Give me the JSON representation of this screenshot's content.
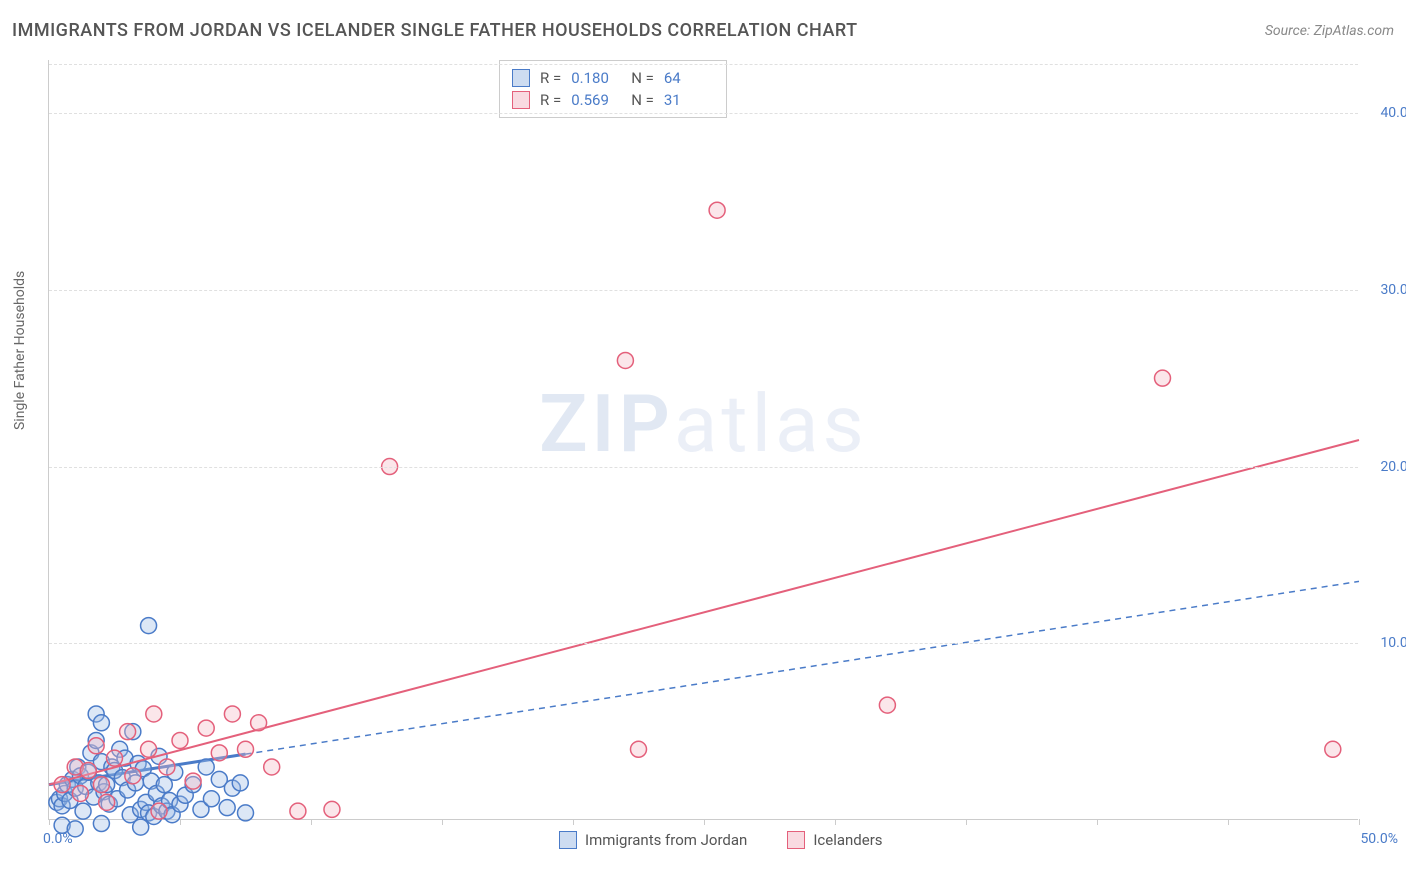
{
  "header": {
    "title": "IMMIGRANTS FROM JORDAN VS ICELANDER SINGLE FATHER HOUSEHOLDS CORRELATION CHART",
    "source": "Source: ZipAtlas.com"
  },
  "watermark": {
    "part1": "ZIP",
    "part2": "atlas"
  },
  "chart": {
    "type": "scatter",
    "ylabel": "Single Father Households",
    "background_color": "#ffffff",
    "grid_color": "#e0e0e0",
    "axis_color": "#cccccc",
    "label_color": "#666666",
    "tick_label_color": "#4a7bc8",
    "tick_fontsize": 14,
    "label_fontsize": 14,
    "xlim": [
      0,
      50
    ],
    "ylim": [
      0,
      43
    ],
    "xticks": [
      0,
      5,
      10,
      15,
      20,
      25,
      30,
      35,
      40,
      45,
      50
    ],
    "xtick_labels": {
      "first": "0.0%",
      "last": "50.0%"
    },
    "yticks": [
      10,
      20,
      30,
      40
    ],
    "ytick_labels": [
      "10.0%",
      "20.0%",
      "30.0%",
      "40.0%"
    ],
    "marker_radius": 8,
    "marker_stroke_width": 1.5,
    "marker_fill_opacity": 0.35,
    "series": [
      {
        "name": "Immigrants from Jordan",
        "color_stroke": "#4a7bc8",
        "color_fill": "#9bb9e4",
        "R": "0.180",
        "N": "64",
        "regression": {
          "x1": 0,
          "y1": 2.0,
          "x2": 50,
          "y2": 13.5,
          "dash": "6,5",
          "width": 1.5
        },
        "regression_solid_end": 7.5,
        "points": [
          [
            0.3,
            1.0
          ],
          [
            0.4,
            1.2
          ],
          [
            0.5,
            0.8
          ],
          [
            0.6,
            1.5
          ],
          [
            0.7,
            2.0
          ],
          [
            0.8,
            1.1
          ],
          [
            0.9,
            2.3
          ],
          [
            1.0,
            1.8
          ],
          [
            1.1,
            3.0
          ],
          [
            1.2,
            2.5
          ],
          [
            1.3,
            0.5
          ],
          [
            1.4,
            1.9
          ],
          [
            1.5,
            2.7
          ],
          [
            1.6,
            3.8
          ],
          [
            1.7,
            1.3
          ],
          [
            1.8,
            4.5
          ],
          [
            1.8,
            6.0
          ],
          [
            1.9,
            2.1
          ],
          [
            2.0,
            3.3
          ],
          [
            2.0,
            5.5
          ],
          [
            2.1,
            1.6
          ],
          [
            2.2,
            2.0
          ],
          [
            2.3,
            0.9
          ],
          [
            2.4,
            3.0
          ],
          [
            2.5,
            2.8
          ],
          [
            2.6,
            1.2
          ],
          [
            2.7,
            4.0
          ],
          [
            2.8,
            2.4
          ],
          [
            2.9,
            3.5
          ],
          [
            3.0,
            1.7
          ],
          [
            3.1,
            0.3
          ],
          [
            3.2,
            5.0
          ],
          [
            3.3,
            2.1
          ],
          [
            3.4,
            3.2
          ],
          [
            3.5,
            0.6
          ],
          [
            3.6,
            2.9
          ],
          [
            3.7,
            1.0
          ],
          [
            3.8,
            0.4
          ],
          [
            3.8,
            11.0
          ],
          [
            3.9,
            2.2
          ],
          [
            4.0,
            0.2
          ],
          [
            4.1,
            1.5
          ],
          [
            4.2,
            3.6
          ],
          [
            4.3,
            0.8
          ],
          [
            4.4,
            2.0
          ],
          [
            4.5,
            0.5
          ],
          [
            4.6,
            1.1
          ],
          [
            4.7,
            0.3
          ],
          [
            4.8,
            2.7
          ],
          [
            5.0,
            0.9
          ],
          [
            5.2,
            1.4
          ],
          [
            5.5,
            2.0
          ],
          [
            5.8,
            0.6
          ],
          [
            6.0,
            3.0
          ],
          [
            6.2,
            1.2
          ],
          [
            6.5,
            2.3
          ],
          [
            6.8,
            0.7
          ],
          [
            7.0,
            1.8
          ],
          [
            7.3,
            2.1
          ],
          [
            7.5,
            0.4
          ],
          [
            0.5,
            -0.3
          ],
          [
            1.0,
            -0.5
          ],
          [
            2.0,
            -0.2
          ],
          [
            3.5,
            -0.4
          ]
        ]
      },
      {
        "name": "Icelanders",
        "color_stroke": "#e4607b",
        "color_fill": "#f4b6c3",
        "R": "0.569",
        "N": "31",
        "regression": {
          "x1": 0,
          "y1": 2.0,
          "x2": 50,
          "y2": 21.5,
          "dash": "none",
          "width": 2
        },
        "points": [
          [
            0.5,
            2.0
          ],
          [
            1.0,
            3.0
          ],
          [
            1.2,
            1.5
          ],
          [
            1.5,
            2.8
          ],
          [
            1.8,
            4.2
          ],
          [
            2.0,
            2.0
          ],
          [
            2.5,
            3.5
          ],
          [
            3.0,
            5.0
          ],
          [
            3.2,
            2.5
          ],
          [
            3.8,
            4.0
          ],
          [
            4.0,
            6.0
          ],
          [
            4.5,
            3.0
          ],
          [
            5.0,
            4.5
          ],
          [
            5.5,
            2.2
          ],
          [
            6.0,
            5.2
          ],
          [
            6.5,
            3.8
          ],
          [
            7.0,
            6.0
          ],
          [
            7.5,
            4.0
          ],
          [
            8.0,
            5.5
          ],
          [
            8.5,
            3.0
          ],
          [
            9.5,
            0.5
          ],
          [
            10.8,
            0.6
          ],
          [
            13.0,
            20.0
          ],
          [
            22.0,
            26.0
          ],
          [
            22.5,
            4.0
          ],
          [
            25.5,
            34.5
          ],
          [
            32.0,
            6.5
          ],
          [
            42.5,
            25.0
          ],
          [
            49.0,
            4.0
          ],
          [
            2.2,
            1.0
          ],
          [
            4.2,
            0.5
          ]
        ]
      }
    ],
    "bottom_legend": [
      {
        "label": "Immigrants from Jordan",
        "stroke": "#4a7bc8",
        "fill": "#9bb9e4"
      },
      {
        "label": "Icelanders",
        "stroke": "#e4607b",
        "fill": "#f4b6c3"
      }
    ]
  }
}
